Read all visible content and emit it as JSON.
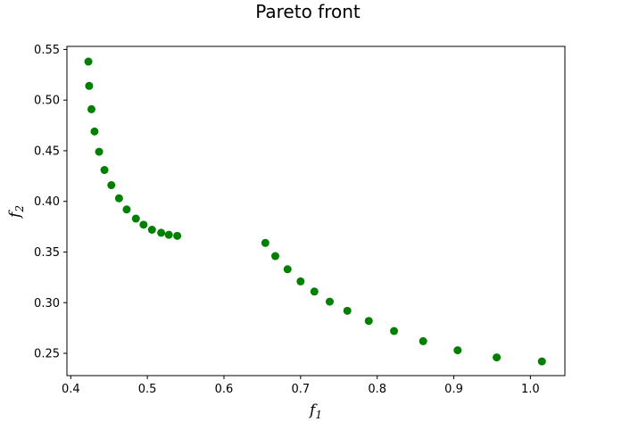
{
  "chart_data": {
    "type": "scatter",
    "title": "Pareto front",
    "xlabel": {
      "base": "f",
      "sub": "1"
    },
    "ylabel": {
      "base": "f",
      "sub": "2"
    },
    "xlim": [
      0.395,
      1.045
    ],
    "ylim": [
      0.228,
      0.553
    ],
    "xticks": [
      0.4,
      0.5,
      0.6,
      0.7,
      0.8,
      0.9,
      1.0
    ],
    "xtick_labels": [
      "0.4",
      "0.5",
      "0.6",
      "0.7",
      "0.8",
      "0.9",
      "1.0"
    ],
    "yticks": [
      0.25,
      0.3,
      0.35,
      0.4,
      0.45,
      0.5,
      0.55
    ],
    "ytick_labels": [
      "0.25",
      "0.30",
      "0.35",
      "0.40",
      "0.45",
      "0.50",
      "0.55"
    ],
    "grid": false,
    "marker_color": "#008000",
    "series": [
      {
        "x": [
          0.423,
          0.424,
          0.427,
          0.431,
          0.437,
          0.444,
          0.453,
          0.463,
          0.473,
          0.485,
          0.495,
          0.506,
          0.518,
          0.528,
          0.539,
          0.654,
          0.667,
          0.683,
          0.7,
          0.718,
          0.738,
          0.761,
          0.789,
          0.822,
          0.86,
          0.905,
          0.956,
          1.015
        ],
        "y": [
          0.538,
          0.514,
          0.491,
          0.469,
          0.449,
          0.431,
          0.416,
          0.403,
          0.392,
          0.383,
          0.377,
          0.372,
          0.369,
          0.367,
          0.366,
          0.359,
          0.346,
          0.333,
          0.321,
          0.311,
          0.301,
          0.292,
          0.282,
          0.272,
          0.262,
          0.253,
          0.246,
          0.242
        ]
      }
    ]
  }
}
